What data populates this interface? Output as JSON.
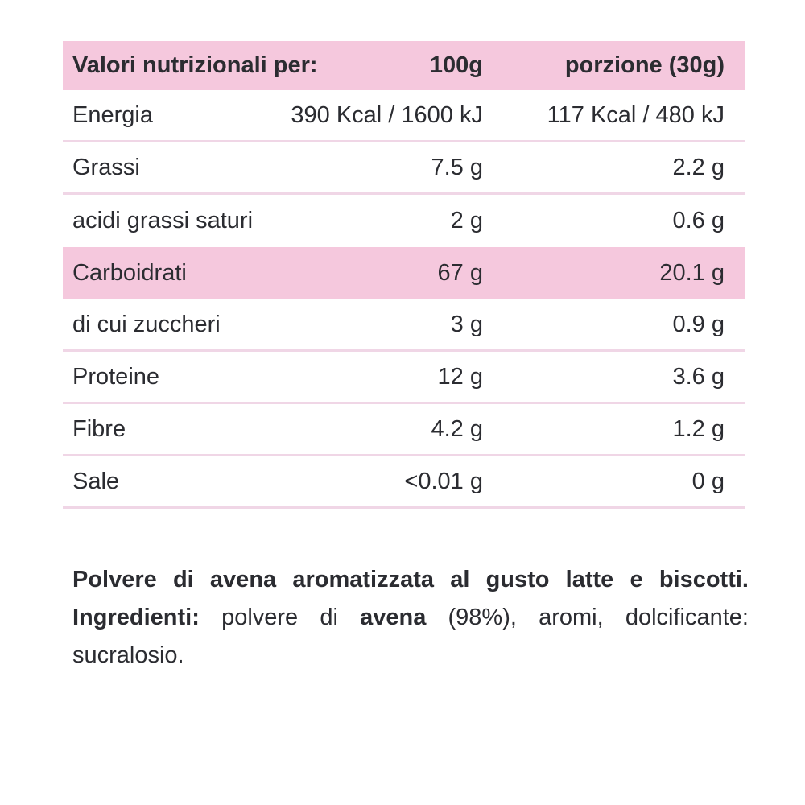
{
  "table": {
    "header": {
      "title": "Valori nutrizionali per:",
      "col_100g": "100g",
      "col_portion": "porzione (30g)"
    },
    "rows": [
      {
        "label": "Energia",
        "per_100g": "390 Kcal / 1600 kJ",
        "per_portion": "117 Kcal / 480 kJ",
        "highlight": false
      },
      {
        "label": "Grassi",
        "per_100g": "7.5 g",
        "per_portion": "2.2 g",
        "highlight": false
      },
      {
        "label": "acidi grassi saturi",
        "per_100g": "2 g",
        "per_portion": "0.6 g",
        "highlight": false
      },
      {
        "label": "Carboidrati",
        "per_100g": "67 g",
        "per_portion": "20.1 g",
        "highlight": true
      },
      {
        "label": "di cui zuccheri",
        "per_100g": "3 g",
        "per_portion": "0.9 g",
        "highlight": false
      },
      {
        "label": "Proteine",
        "per_100g": "12 g",
        "per_portion": "3.6 g",
        "highlight": false
      },
      {
        "label": "Fibre",
        "per_100g": "4.2 g",
        "per_portion": "1.2 g",
        "highlight": false
      },
      {
        "label": "Sale",
        "per_100g": "<0.01 g",
        "per_portion": "0 g",
        "highlight": false
      }
    ]
  },
  "description": {
    "line1": "Polvere di avena aromatizzata al gusto latte e biscotti.",
    "ingredients_label": "Ingredienti:",
    "seg_regular1": "polvere di",
    "seg_bold": "avena",
    "seg_regular2": "(98%), aromi, dolcificante:",
    "line3": "sucralosio."
  },
  "colors": {
    "band_pink": "#f5c8dd",
    "divider_pink": "#f0d6e6",
    "text": "#2b2c31",
    "background": "#ffffff"
  }
}
